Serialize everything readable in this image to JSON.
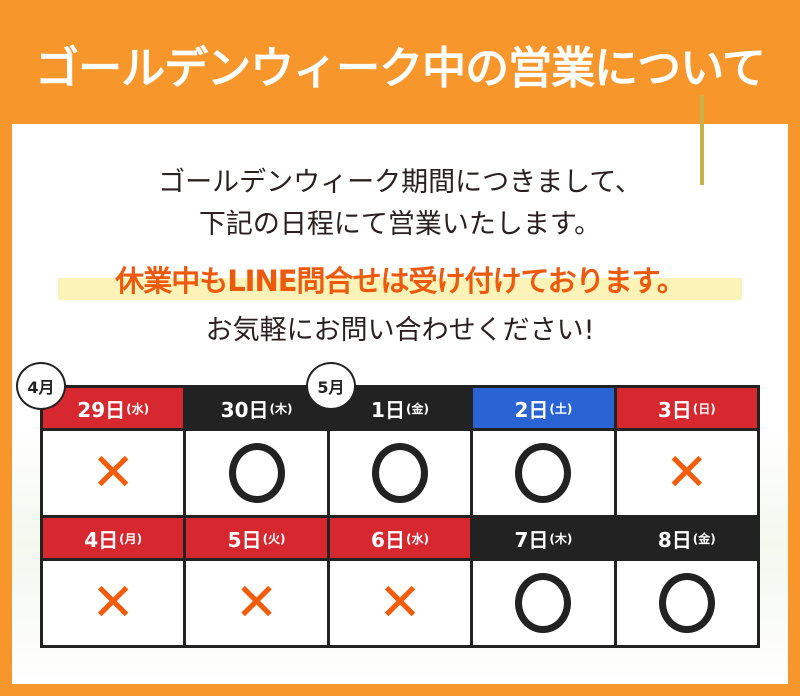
{
  "title": "ゴールデンウィーク中の営業について",
  "intro": {
    "line1": "ゴールデンウィーク期間につきまして、",
    "line2": "下記の日程にて営業いたします。",
    "highlight": "休業中もLINE問合せは受け付けております。",
    "line4": "お気軽にお問い合わせください!"
  },
  "colors": {
    "closed_header": "#D7282F",
    "open_header": "#222222",
    "saturday_header": "#2A63D4",
    "closed_mark": "#F25C0A",
    "background": "#F7962B"
  },
  "month_labels": [
    "4月",
    "5月"
  ],
  "days": [
    {
      "day": "29日",
      "weekday": "(水)",
      "status": "closed",
      "mark": "✕",
      "header_color": "#D7282F"
    },
    {
      "day": "30日",
      "weekday": "(木)",
      "status": "open",
      "mark": "○",
      "header_color": "#222222"
    },
    {
      "day": "1日",
      "weekday": "(金)",
      "status": "open",
      "mark": "○",
      "header_color": "#222222"
    },
    {
      "day": "2日",
      "weekday": "(土)",
      "status": "open",
      "mark": "○",
      "header_color": "#2A63D4"
    },
    {
      "day": "3日",
      "weekday": "(日)",
      "status": "closed",
      "mark": "✕",
      "header_color": "#D7282F"
    },
    {
      "day": "4日",
      "weekday": "(月)",
      "status": "closed",
      "mark": "✕",
      "header_color": "#D7282F"
    },
    {
      "day": "5日",
      "weekday": "(火)",
      "status": "closed",
      "mark": "✕",
      "header_color": "#D7282F"
    },
    {
      "day": "6日",
      "weekday": "(水)",
      "status": "closed",
      "mark": "✕",
      "header_color": "#D7282F"
    },
    {
      "day": "7日",
      "weekday": "(木)",
      "status": "open",
      "mark": "○",
      "header_color": "#222222"
    },
    {
      "day": "8日",
      "weekday": "(金)",
      "status": "open",
      "mark": "○",
      "header_color": "#222222"
    }
  ]
}
